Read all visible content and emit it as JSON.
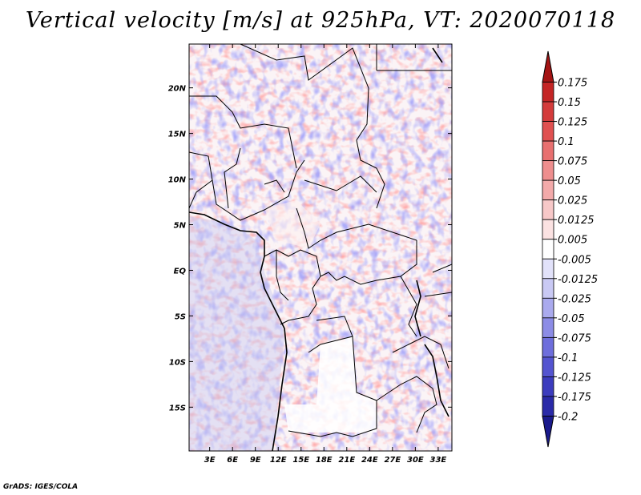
{
  "title": "Vertical velocity [m/s] at 925hPa, VT: 2020070118",
  "credit": "GrADS: IGES/COLA",
  "chart_data": {
    "type": "heatmap",
    "variable": "Vertical velocity",
    "units": "m/s",
    "level": "925hPa",
    "valid_time": "2020070118",
    "x_ticks": [
      "3E",
      "6E",
      "9E",
      "12E",
      "15E",
      "18E",
      "21E",
      "24E",
      "27E",
      "30E",
      "33E"
    ],
    "x_tick_values": [
      3,
      6,
      9,
      12,
      15,
      18,
      21,
      24,
      27,
      30,
      33
    ],
    "y_ticks": [
      "20N",
      "15N",
      "10N",
      "5N",
      "EQ",
      "5S",
      "10S",
      "15S"
    ],
    "y_tick_values": [
      20,
      15,
      10,
      5,
      0,
      -5,
      -10,
      -15
    ],
    "xlim": [
      0.3,
      34.8
    ],
    "ylim": [
      -19.8,
      24.8
    ],
    "colorbar_labels": [
      "0.175",
      "0.15",
      "0.125",
      "0.1",
      "0.075",
      "0.05",
      "0.025",
      "0.0125",
      "0.005",
      "-0.005",
      "-0.0125",
      "-0.025",
      "-0.05",
      "-0.075",
      "-0.1",
      "-0.125",
      "-0.175",
      "-0.2"
    ],
    "colorbar_colors": [
      "#a41414",
      "#c42525",
      "#d43b3b",
      "#e05050",
      "#e87070",
      "#ee8e8e",
      "#f3aaaa",
      "#f7c8c8",
      "#fbe2e2",
      "#ffffff",
      "#e2e2fa",
      "#c9c9f4",
      "#aaaaee",
      "#8c8ce6",
      "#6e6edc",
      "#5454d0",
      "#3c3cbe",
      "#2a2aa8",
      "#1a1a8c"
    ],
    "colorbar_orientation": "vertical, right"
  }
}
